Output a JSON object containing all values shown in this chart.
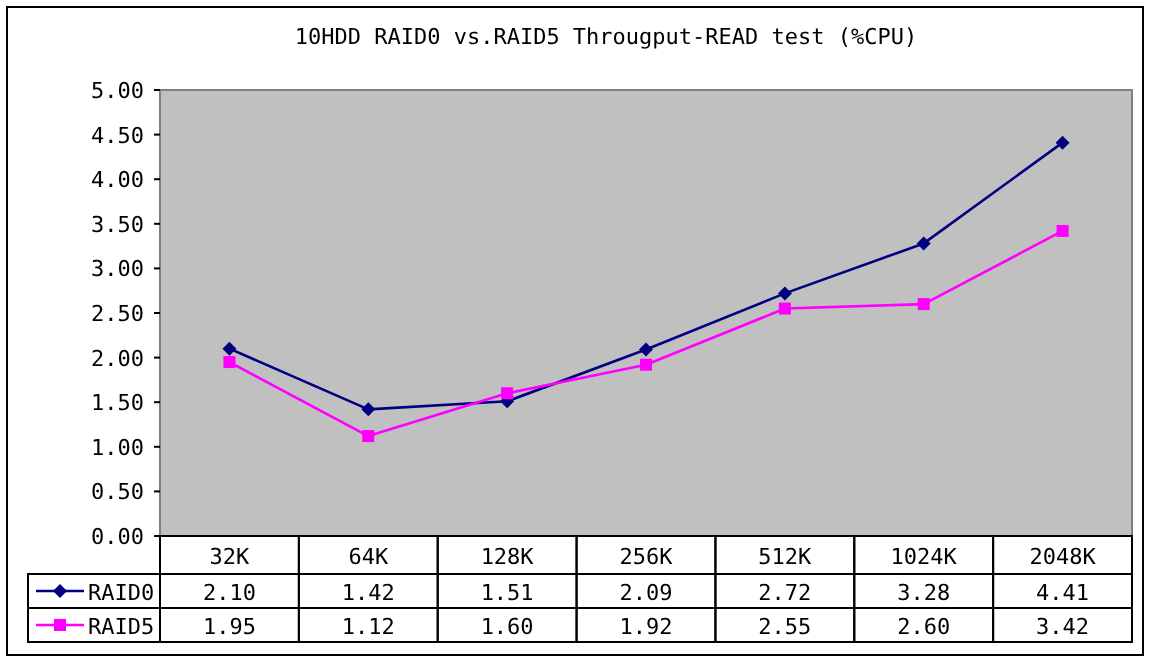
{
  "chart_data": {
    "type": "line",
    "title": "10HDD RAID0 vs.RAID5 Througput-READ test (%CPU)",
    "categories": [
      "32K",
      "64K",
      "128K",
      "256K",
      "512K",
      "1024K",
      "2048K"
    ],
    "series": [
      {
        "name": "RAID0",
        "color": "#000080",
        "marker": "diamond",
        "values": [
          2.1,
          1.42,
          1.51,
          2.09,
          2.72,
          3.28,
          4.41
        ],
        "value_labels": [
          "2.10",
          "1.42",
          "1.51",
          "2.09",
          "2.72",
          "3.28",
          "4.41"
        ]
      },
      {
        "name": "RAID5",
        "color": "#ff00ff",
        "marker": "square",
        "values": [
          1.95,
          1.12,
          1.6,
          1.92,
          2.55,
          2.6,
          3.42
        ],
        "value_labels": [
          "1.95",
          "1.12",
          "1.60",
          "1.92",
          "2.55",
          "2.60",
          "3.42"
        ]
      }
    ],
    "ylim": [
      0,
      5
    ],
    "yticks": [
      {
        "value": 0,
        "label": "0.00"
      },
      {
        "value": 0.5,
        "label": "0.50"
      },
      {
        "value": 1,
        "label": "1.00"
      },
      {
        "value": 1.5,
        "label": "1.50"
      },
      {
        "value": 2,
        "label": "2.00"
      },
      {
        "value": 2.5,
        "label": "2.50"
      },
      {
        "value": 3,
        "label": "3.00"
      },
      {
        "value": 3.5,
        "label": "3.50"
      },
      {
        "value": 4,
        "label": "4.00"
      },
      {
        "value": 4.5,
        "label": "4.50"
      },
      {
        "value": 5,
        "label": "5.00"
      }
    ],
    "legend": "bottom"
  }
}
